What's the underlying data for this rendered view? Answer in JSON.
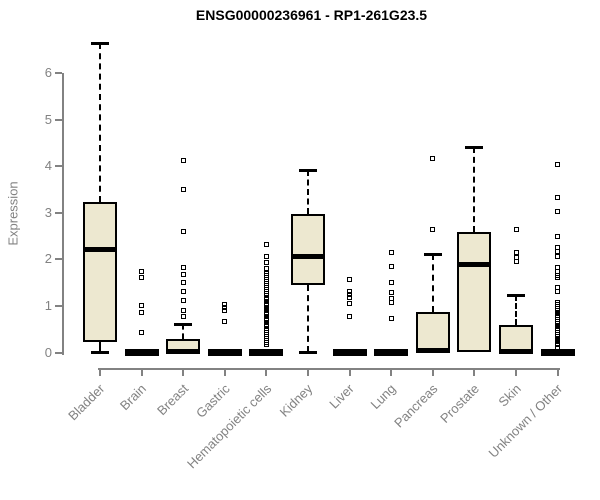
{
  "title": "ENSG00000236961 - RP1-261G23.5",
  "chart_data": {
    "type": "boxplot",
    "title": "ENSG00000236961 - RP1-261G23.5",
    "xlabel": "",
    "ylabel": "Expression",
    "ylim": [
      0,
      6.8
    ],
    "yticks": [
      0,
      1,
      2,
      3,
      4,
      5,
      6
    ],
    "grid": false,
    "legend": null,
    "categories": [
      "Bladder",
      "Brain",
      "Breast",
      "Gastric",
      "Hematopoietic cells",
      "Kidney",
      "Liver",
      "Lung",
      "Pancreas",
      "Prostate",
      "Skin",
      "Unknown / Other"
    ],
    "series": [
      {
        "name": "Bladder",
        "min": 0.02,
        "q1": 0.22,
        "median": 2.21,
        "q3": 3.24,
        "max": 6.65,
        "outliers": []
      },
      {
        "name": "Brain",
        "min": 0,
        "q1": 0,
        "median": 0.02,
        "q3": 0.04,
        "max": 0.05,
        "outliers": [
          1.74,
          1.61,
          1.01,
          0.86,
          0.43
        ]
      },
      {
        "name": "Breast",
        "min": 0,
        "q1": 0.01,
        "median": 0.03,
        "q3": 0.3,
        "max": 0.62,
        "outliers": [
          4.12,
          3.51,
          2.59,
          1.82,
          1.67,
          1.5,
          1.31,
          1.11,
          0.9,
          0.77
        ]
      },
      {
        "name": "Gastric",
        "min": 0,
        "q1": 0,
        "median": 0.02,
        "q3": 0.04,
        "max": 0.05,
        "outliers": [
          1.03,
          0.97,
          0.9,
          0.66
        ]
      },
      {
        "name": "Hematopoietic cells",
        "min": 0,
        "q1": 0,
        "median": 0.02,
        "q3": 0.04,
        "max": 0.05,
        "outliers": [
          2.31,
          2.06,
          1.93,
          1.8,
          1.7,
          1.65,
          1.61,
          1.56,
          1.52,
          1.48,
          1.43,
          1.39,
          1.35,
          1.3,
          1.26,
          1.22,
          1.17,
          1.13,
          1.09,
          1.04,
          1.0,
          0.96,
          0.91,
          0.87,
          0.83,
          0.78,
          0.74,
          0.7,
          0.65,
          0.61,
          0.57,
          0.52,
          0.48,
          0.44,
          0.39,
          0.35,
          0.31,
          0.26,
          0.22,
          0.17
        ]
      },
      {
        "name": "Kidney",
        "min": 0.02,
        "q1": 1.44,
        "median": 2.06,
        "q3": 2.98,
        "max": 3.92,
        "outliers": []
      },
      {
        "name": "Liver",
        "min": 0,
        "q1": 0,
        "median": 0.02,
        "q3": 0.04,
        "max": 0.05,
        "outliers": [
          1.56,
          1.31,
          1.24,
          1.18,
          1.05,
          0.77
        ]
      },
      {
        "name": "Lung",
        "min": 0,
        "q1": 0,
        "median": 0.02,
        "q3": 0.04,
        "max": 0.05,
        "outliers": [
          2.14,
          1.84,
          1.5,
          1.28,
          1.15,
          1.07,
          0.74
        ]
      },
      {
        "name": "Pancreas",
        "min": 0,
        "q1": 0.01,
        "median": 0.04,
        "q3": 0.86,
        "max": 2.12,
        "outliers": [
          4.17,
          2.64
        ]
      },
      {
        "name": "Prostate",
        "min": 0,
        "q1": 0.02,
        "median": 1.89,
        "q3": 2.58,
        "max": 4.42,
        "outliers": []
      },
      {
        "name": "Skin",
        "min": 0,
        "q1": 0.01,
        "median": 0.03,
        "q3": 0.6,
        "max": 1.24,
        "outliers": [
          2.64,
          2.14,
          2.04,
          1.95
        ]
      },
      {
        "name": "Unknown / Other",
        "min": 0,
        "q1": 0,
        "median": 0.02,
        "q3": 0.04,
        "max": 0.05,
        "outliers": [
          4.03,
          3.34,
          3.02,
          2.49,
          2.25,
          2.16,
          2.06,
          1.82,
          1.74,
          1.65,
          1.61,
          1.39,
          1.31,
          1.07,
          1.03,
          0.99,
          0.95,
          0.91,
          0.87,
          0.83,
          0.79,
          0.75,
          0.71,
          0.67,
          0.63,
          0.59,
          0.55,
          0.51,
          0.47,
          0.43,
          0.39,
          0.35,
          0.31,
          0.27,
          0.23,
          0.19,
          0.17,
          0.11
        ]
      }
    ],
    "colors": {
      "box_fill": "#EDE8D0",
      "box_border": "#000000",
      "median": "#000000",
      "whisker": "#000000",
      "outlier": "#000000",
      "axis": "#828282",
      "tick_label": "#828282",
      "title": "#000000",
      "background": "#ffffff"
    }
  }
}
